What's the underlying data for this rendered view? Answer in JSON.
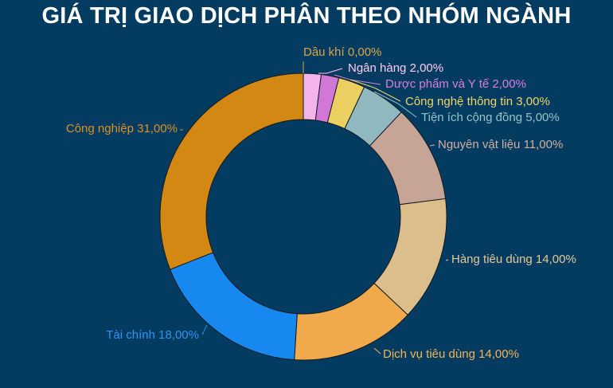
{
  "chart_data": {
    "type": "pie",
    "title": "GIÁ TRỊ GIAO DỊCH PHÂN THEO NHÓM NGÀNH",
    "donut": true,
    "slices": [
      {
        "label": "Dầu khí",
        "value": 0.0,
        "value_label": "0,00%",
        "color": "#d2a0c8",
        "text_color": "#d7a64a"
      },
      {
        "label": "Ngân hàng",
        "value": 2.0,
        "value_label": "2,00%",
        "color": "#f3b4ea",
        "text_color": "#ffc9f5"
      },
      {
        "label": "Dược phẩm và Y tế",
        "value": 2.0,
        "value_label": "2,00%",
        "color": "#d178d6",
        "text_color": "#d97fdc"
      },
      {
        "label": "Công nghệ thông tin",
        "value": 3.0,
        "value_label": "3,00%",
        "color": "#ebcf60",
        "text_color": "#f0d46a"
      },
      {
        "label": "Tiện ích cộng đồng",
        "value": 5.0,
        "value_label": "5,00%",
        "color": "#8fb8bf",
        "text_color": "#96c1c8"
      },
      {
        "label": "Nguyên vật liệu",
        "value": 11.0,
        "value_label": "11,00%",
        "color": "#c6a496",
        "text_color": "#d2b0a1"
      },
      {
        "label": "Hàng tiêu dùng",
        "value": 14.0,
        "value_label": "14,00%",
        "color": "#dcbe8c",
        "text_color": "#e6c897"
      },
      {
        "label": "Dịch vụ tiêu dùng",
        "value": 14.0,
        "value_label": "14,00%",
        "color": "#f0aa4c",
        "text_color": "#f5b457"
      },
      {
        "label": "Tài chính",
        "value": 18.0,
        "value_label": "18,00%",
        "color": "#1788f0",
        "text_color": "#2d93f4"
      },
      {
        "label": "Công nghiệp",
        "value": 31.0,
        "value_label": "31,00%",
        "color": "#d38814",
        "text_color": "#d99227"
      }
    ]
  }
}
